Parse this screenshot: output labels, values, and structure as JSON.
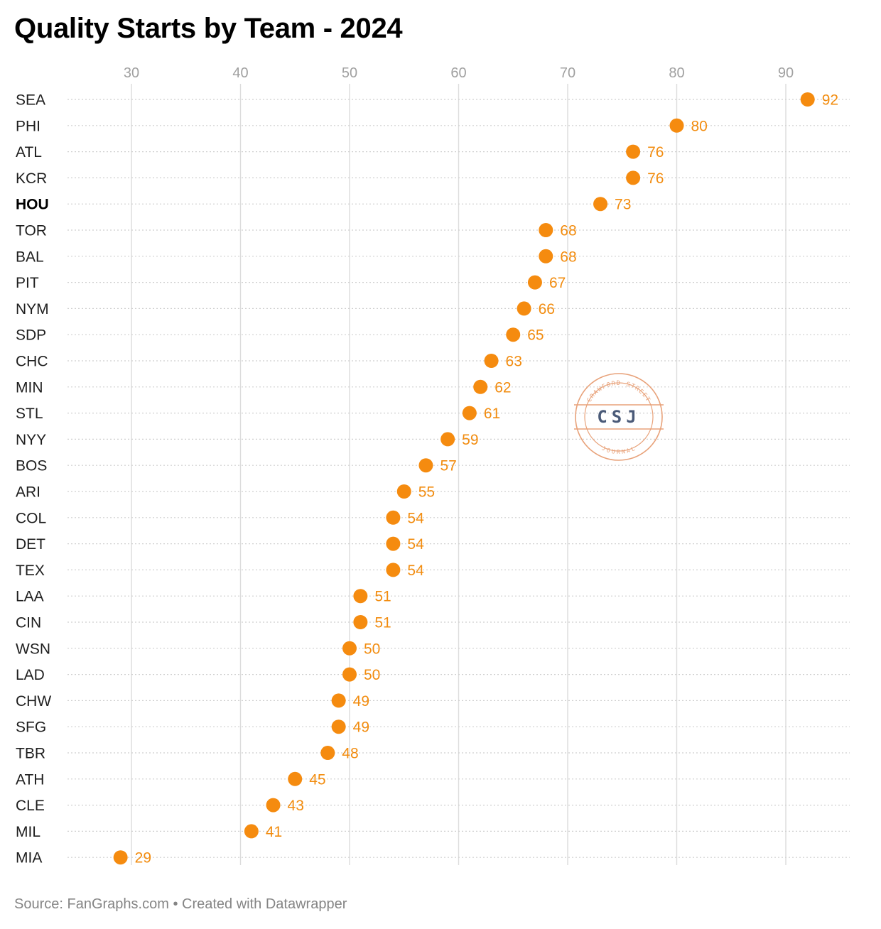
{
  "title": "Quality Starts by Team - 2024",
  "footer": {
    "source": "Source: FanGraphs.com",
    "separator": "•",
    "credit": "Created with Datawrapper"
  },
  "watermark": {
    "top_text": "CRAWFORD STREET",
    "center_text": "CSJ",
    "bottom_text": "JOURNAL",
    "color": "#e8a27a",
    "center_color": "#4a5a78"
  },
  "colors": {
    "dot": "#f58b0f",
    "value_label": "#f28c0f",
    "grid": "#dcdcdc",
    "row_line": "#cfcfcf"
  },
  "chart_data": {
    "type": "scatter",
    "subtype": "dot-plot",
    "title": "Quality Starts by Team - 2024",
    "xlabel": "",
    "ylabel": "",
    "xlim": [
      28,
      96
    ],
    "xticks": [
      30,
      40,
      50,
      60,
      70,
      80,
      90
    ],
    "highlight": "HOU",
    "categories": [
      "SEA",
      "PHI",
      "ATL",
      "KCR",
      "HOU",
      "TOR",
      "BAL",
      "PIT",
      "NYM",
      "SDP",
      "CHC",
      "MIN",
      "STL",
      "NYY",
      "BOS",
      "ARI",
      "COL",
      "DET",
      "TEX",
      "LAA",
      "CIN",
      "WSN",
      "LAD",
      "CHW",
      "SFG",
      "TBR",
      "ATH",
      "CLE",
      "MIL",
      "MIA"
    ],
    "values": [
      92,
      80,
      76,
      76,
      73,
      68,
      68,
      67,
      66,
      65,
      63,
      62,
      61,
      59,
      57,
      55,
      54,
      54,
      54,
      51,
      51,
      50,
      50,
      49,
      49,
      48,
      45,
      43,
      41,
      29
    ]
  }
}
